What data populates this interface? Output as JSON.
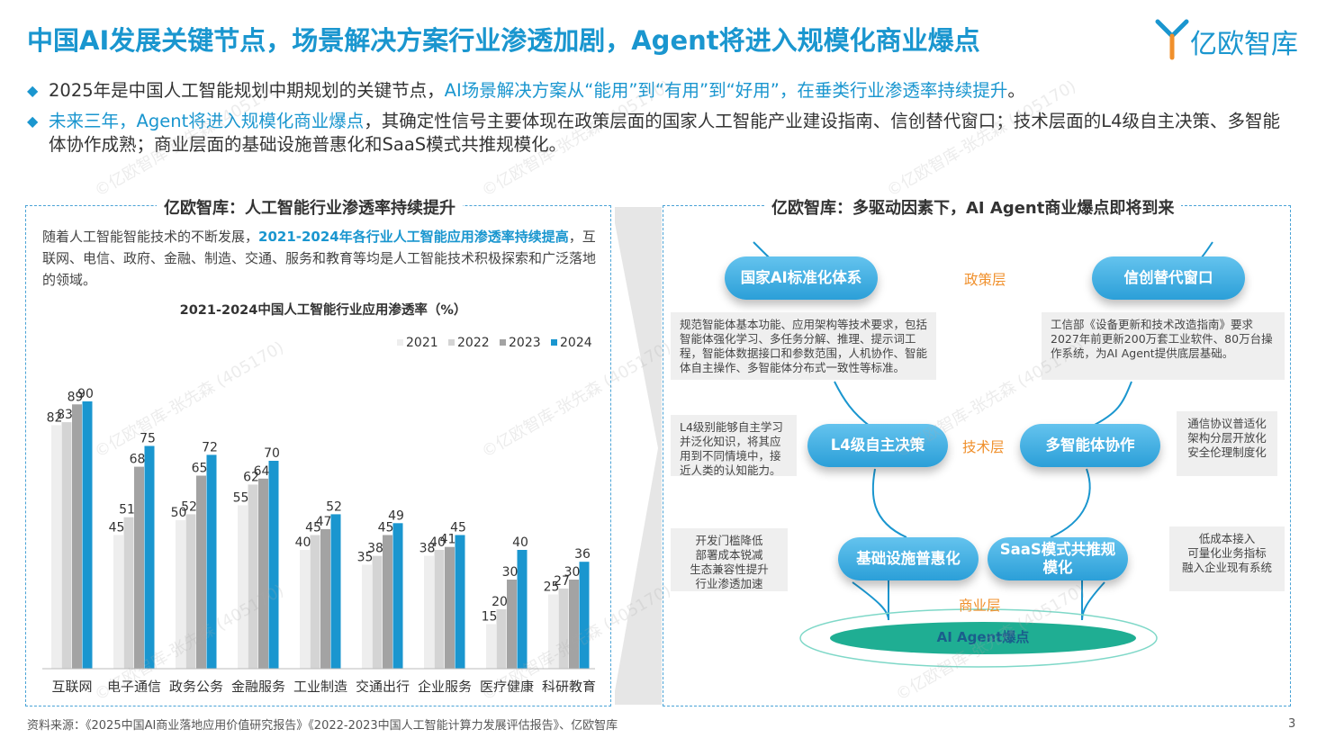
{
  "header": {
    "title": "中国AI发展关键节点，场景解决方案行业渗透加剧，Agent将进入规模化商业爆点",
    "logo_text": "亿欧智库"
  },
  "bullets": [
    {
      "pre": "2025年是中国人工智能规划中期规划的关键节点，",
      "hl": "AI场景解决方案从“能用”到“有用”到“好用”，在垂类行业渗透率持续提升",
      "post": "。"
    },
    {
      "pre": "",
      "hl": "未来三年，Agent将进入规模化商业爆点",
      "post": "，其确定性信号主要体现在政策层面的国家人工智能产业建设指南、信创替代窗口；技术层面的L4级自主决策、多智能体协作成熟；商业层面的基础设施普惠化和SaaS模式共推规模化。"
    }
  ],
  "left_panel": {
    "title": "亿欧智库：人工智能行业渗透率持续提升",
    "intro_pre": "随着人工智能智能技术的不断发展，",
    "intro_hl": "2021-2024年各行业人工智能应用渗透率持续提高",
    "intro_post": "，互联网、电信、政府、金融、制造、交通、服务和教育等均是人工智能技术积极探索和广泛落地的领域。"
  },
  "chart_data": {
    "type": "bar",
    "title": "2021-2024中国人工智能行业应用渗透率（%）",
    "categories": [
      "互联网",
      "电子通信",
      "政务公务",
      "金融服务",
      "工业制造",
      "交通出行",
      "企业服务",
      "医疗健康",
      "科研教育"
    ],
    "series": [
      {
        "name": "2021",
        "color": "#eeeeee",
        "values": [
          82,
          45,
          50,
          55,
          40,
          35,
          38,
          15,
          25
        ]
      },
      {
        "name": "2022",
        "color": "#d4d4d4",
        "values": [
          83,
          51,
          52,
          62,
          45,
          38,
          40,
          20,
          27
        ]
      },
      {
        "name": "2023",
        "color": "#a3a3a3",
        "values": [
          89,
          68,
          65,
          64,
          47,
          45,
          41,
          30,
          30
        ]
      },
      {
        "name": "2024",
        "color": "#1a96cf",
        "values": [
          90,
          75,
          72,
          70,
          52,
          49,
          45,
          40,
          36
        ]
      }
    ],
    "ylim": [
      0,
      100
    ],
    "legend": "top-right",
    "grid": false
  },
  "right_panel": {
    "title": "亿欧智库：多驱动因素下，AI Agent商业爆点即将到来",
    "layers": {
      "policy": "政策层",
      "tech": "技术层",
      "business": "商业层"
    },
    "nodes": {
      "national_ai": "国家AI标准化体系",
      "xinchuang": "信创替代窗口",
      "l4": "L4级自主决策",
      "multi_agent": "多智能体协作",
      "infra": "基础设施普惠化",
      "saas_1": "SaaS模式共推规",
      "saas_2": "模化",
      "core": "AI Agent爆点"
    },
    "boxes": {
      "national_ai_desc": "规范智能体基本功能、应用架构等技术要求，包括智能体强化学习、多任务分解、推理、提示词工程，智能体数据接口和参数范围，人机协作、智能体自主操作、多智能体分布式一致性等标准。",
      "xinchuang_desc": "工信部《设备更新和技术改造指南》要求2027年前更新200万套工业软件、80万台操作系统，为AI Agent提供底层基础。",
      "l4_desc": "L4级别能够自主学习并泛化知识，将其应用到不同情境中，接近人类的认知能力。",
      "multi_agent_desc": "通信协议普适化\n架构分层开放化\n安全伦理制度化",
      "infra_desc": "开发门槛降低\n部署成本锐减\n生态兼容性提升\n行业渗透加速",
      "saas_desc": "低成本接入\n可量化业务指标\n融入企业现有系统"
    }
  },
  "footer": {
    "source": "资料来源：《2025中国AI商业落地应用价值研究报告》《2022-2023中国人工智能计算力发展评估报告》、亿欧智库",
    "page": "3"
  },
  "watermark": "©亿欧智库-张先森 (405170)"
}
